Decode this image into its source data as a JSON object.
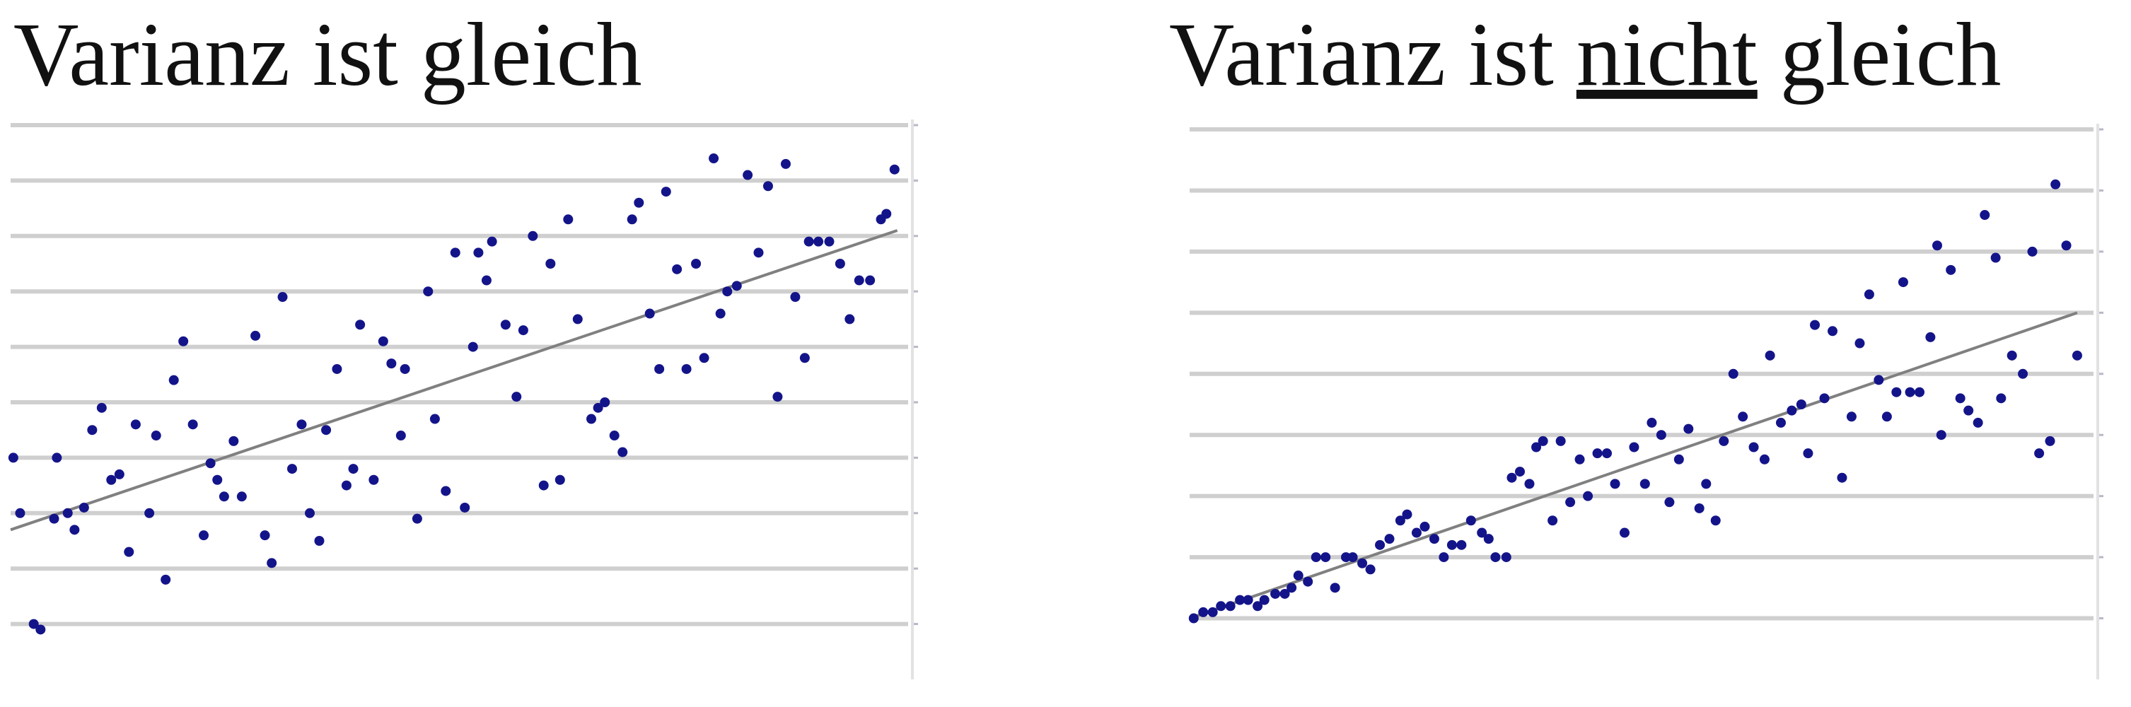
{
  "chart_data": [
    {
      "type": "scatter",
      "title": "Varianz ist gleich",
      "color": "#14148a",
      "grid": true,
      "xlim": [
        0,
        660
      ],
      "ylim": [
        0,
        10
      ],
      "yticks": [
        1,
        2,
        3,
        4,
        5,
        6,
        7,
        8,
        9,
        10
      ],
      "x": [
        2,
        7,
        17,
        22,
        34,
        32,
        42,
        47,
        54,
        60,
        67,
        74,
        80,
        87,
        92,
        102,
        107,
        114,
        120,
        127,
        134,
        142,
        147,
        152,
        157,
        164,
        170,
        180,
        187,
        192,
        200,
        207,
        214,
        220,
        227,
        232,
        240,
        247,
        252,
        257,
        267,
        274,
        280,
        290,
        287,
        299,
        307,
        312,
        320,
        327,
        334,
        340,
        344,
        350,
        354,
        364,
        372,
        377,
        384,
        392,
        397,
        404,
        410,
        417,
        427,
        432,
        437,
        444,
        450,
        457,
        462,
        470,
        477,
        482,
        490,
        497,
        504,
        510,
        517,
        522,
        527,
        534,
        542,
        550,
        557,
        564,
        570,
        577,
        584,
        587,
        594,
        602,
        610,
        617,
        624,
        632,
        640,
        644,
        650
      ],
      "values": [
        4.0,
        3.0,
        1.0,
        0.9,
        4.0,
        2.9,
        3.0,
        2.7,
        3.1,
        4.5,
        4.9,
        3.6,
        3.7,
        2.3,
        4.6,
        3.0,
        4.4,
        1.8,
        5.4,
        6.1,
        4.6,
        2.6,
        3.9,
        3.6,
        3.3,
        4.3,
        3.3,
        6.2,
        2.6,
        2.1,
        6.9,
        3.8,
        4.6,
        3.0,
        2.5,
        4.5,
        5.6,
        3.5,
        3.8,
        6.4,
        3.6,
        6.1,
        5.7,
        5.6,
        4.4,
        2.9,
        7.0,
        4.7,
        3.4,
        7.7,
        3.1,
        6.0,
        7.7,
        7.2,
        7.9,
        6.4,
        5.1,
        6.3,
        8.0,
        3.5,
        7.5,
        3.6,
        8.3,
        6.5,
        4.7,
        4.9,
        5.0,
        4.4,
        4.1,
        8.3,
        8.6,
        6.6,
        5.6,
        8.8,
        7.4,
        5.6,
        7.5,
        5.8,
        9.4,
        6.6,
        7.0,
        7.1,
        9.1,
        7.7,
        8.9,
        5.1,
        9.3,
        6.9,
        5.8,
        7.9,
        7.9,
        7.9,
        7.5,
        6.5,
        7.2,
        7.2,
        8.3,
        8.4,
        9.2
      ],
      "trendline": {
        "x": [
          0,
          652
        ],
        "values": [
          2.7,
          8.1
        ],
        "color": "#808080"
      }
    },
    {
      "type": "scatter",
      "title": "Varianz ist nicht gleich",
      "underline_word": 2,
      "color": "#14148a",
      "grid": true,
      "xlim": [
        0,
        665
      ],
      "ylim": [
        0,
        9
      ],
      "yticks": [
        1,
        2,
        3,
        4,
        5,
        6,
        7,
        8,
        9
      ],
      "x": [
        3,
        10,
        17,
        23,
        30,
        37,
        43,
        50,
        55,
        63,
        70,
        75,
        80,
        87,
        93,
        100,
        107,
        115,
        120,
        127,
        133,
        140,
        147,
        155,
        160,
        167,
        173,
        180,
        187,
        193,
        200,
        207,
        215,
        220,
        225,
        233,
        237,
        243,
        250,
        255,
        260,
        267,
        273,
        280,
        287,
        293,
        300,
        307,
        313,
        320,
        327,
        335,
        340,
        347,
        353,
        360,
        367,
        375,
        380,
        387,
        393,
        400,
        407,
        415,
        423,
        427,
        435,
        443,
        450,
        455,
        460,
        467,
        473,
        480,
        487,
        493,
        500,
        507,
        513,
        520,
        525,
        530,
        537,
        545,
        550,
        553,
        560,
        567,
        573,
        580,
        585,
        593,
        597,
        605,
        613,
        620,
        625,
        633,
        637,
        645,
        653
      ],
      "values": [
        1.0,
        1.1,
        1.1,
        1.2,
        1.2,
        1.3,
        1.3,
        1.2,
        1.3,
        1.4,
        1.4,
        1.5,
        1.7,
        1.6,
        2.0,
        2.0,
        1.5,
        2.0,
        2.0,
        1.9,
        1.8,
        2.2,
        2.3,
        2.6,
        2.7,
        2.4,
        2.5,
        2.3,
        2.0,
        2.2,
        2.2,
        2.6,
        2.4,
        2.3,
        2.0,
        2.0,
        3.3,
        3.4,
        3.2,
        3.8,
        3.9,
        2.6,
        3.9,
        2.9,
        3.6,
        3.0,
        3.7,
        3.7,
        3.2,
        2.4,
        3.8,
        3.2,
        4.2,
        4.0,
        2.9,
        3.6,
        4.1,
        2.8,
        3.2,
        2.6,
        3.9,
        5.0,
        4.3,
        3.8,
        3.6,
        5.3,
        4.2,
        4.4,
        4.5,
        3.7,
        5.8,
        4.6,
        5.7,
        3.3,
        4.3,
        5.5,
        6.3,
        4.9,
        4.3,
        4.7,
        6.5,
        4.7,
        4.7,
        5.6,
        7.1,
        4.0,
        6.7,
        4.6,
        4.4,
        4.2,
        7.6,
        6.9,
        4.6,
        5.3,
        5.0,
        7.0,
        3.7,
        3.9,
        8.1,
        7.1,
        5.3
      ],
      "trendline": {
        "x": [
          0,
          653
        ],
        "values": [
          1.0,
          6.0
        ],
        "color": "#808080"
      }
    }
  ]
}
